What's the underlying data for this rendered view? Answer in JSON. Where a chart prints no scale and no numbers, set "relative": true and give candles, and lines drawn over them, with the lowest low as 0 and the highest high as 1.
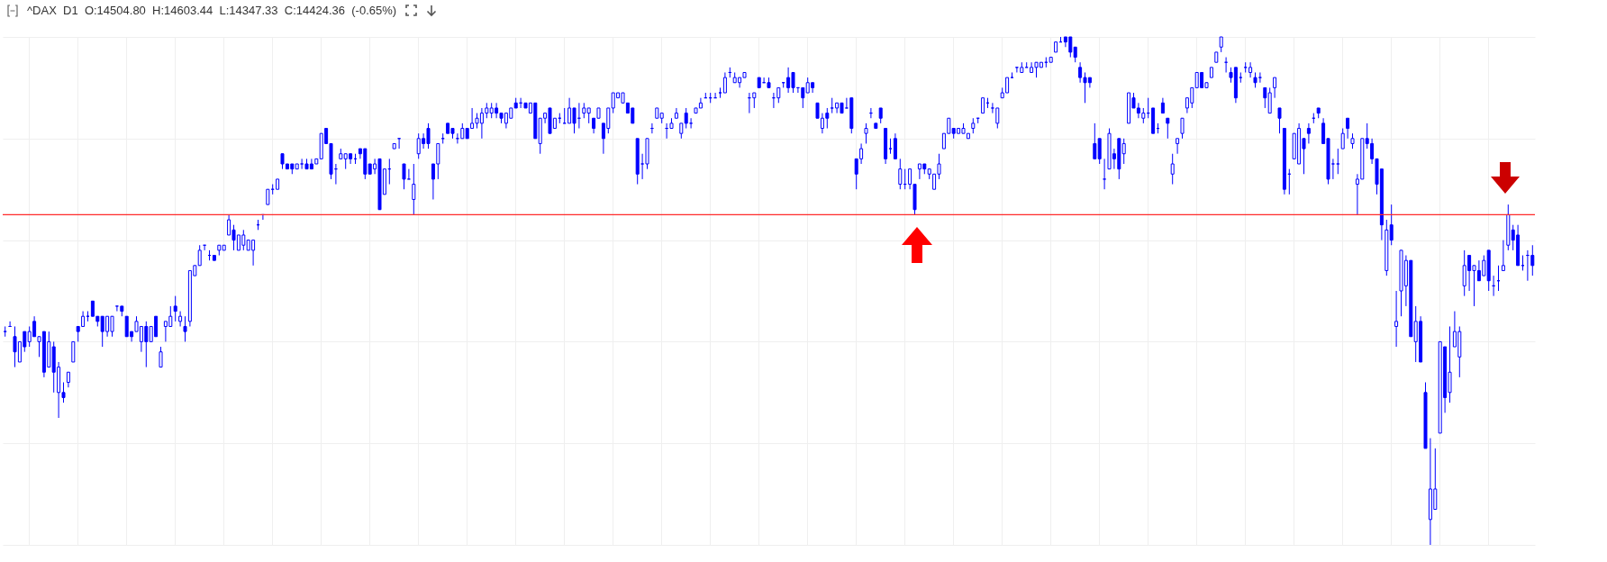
{
  "chart_data": {
    "type": "candlestick",
    "title": "^DAX  D1  O:14504.80  H:14603.44  L:14347.33  C:14424.36  (-0.65%)",
    "relative": true,
    "grid": true,
    "color": "#0000ff",
    "ref_lines": [
      {
        "axis": "y",
        "value": 0.65,
        "color": "#ff2a2a"
      }
    ],
    "categories": [
      null,
      null,
      null,
      null,
      null,
      null,
      null,
      null,
      null,
      null,
      null,
      null,
      null,
      null,
      null,
      null,
      null,
      null,
      null,
      null,
      null,
      null,
      null,
      null,
      null,
      null,
      null,
      null,
      null,
      null,
      null,
      null,
      null,
      null,
      null,
      null,
      null,
      null,
      null,
      null,
      null,
      null,
      null,
      null,
      null,
      null,
      null,
      null,
      null,
      null,
      null,
      null,
      null,
      null,
      null,
      null,
      null,
      null,
      null,
      null,
      null,
      null,
      null,
      null,
      null,
      null,
      null,
      null,
      null,
      null,
      null,
      null,
      null,
      null,
      null,
      null,
      null,
      null,
      null,
      null,
      null,
      null,
      null,
      null,
      null,
      null,
      null,
      null,
      null,
      null,
      null,
      null,
      null,
      null,
      null,
      null,
      null,
      null,
      null,
      null,
      null,
      null,
      null,
      null,
      null,
      null,
      null,
      null,
      null,
      null,
      null,
      null,
      null,
      null,
      null,
      null,
      null,
      null,
      null,
      null,
      null,
      null,
      null,
      null,
      null,
      null,
      null,
      null,
      null,
      null,
      null,
      null,
      null,
      null,
      null,
      null,
      null,
      null,
      null,
      null,
      null,
      null,
      null,
      null,
      null,
      null,
      null,
      null,
      null,
      null,
      null,
      null,
      null,
      null,
      null,
      null,
      null,
      null,
      null,
      null,
      null,
      null,
      null,
      null,
      null,
      null,
      null,
      null,
      null,
      null,
      null,
      null,
      null,
      null,
      null,
      null,
      null,
      null,
      null,
      null,
      null,
      null,
      null,
      null,
      null,
      null,
      null,
      null,
      null,
      null,
      null,
      null,
      null,
      null,
      null,
      null,
      null,
      null,
      null,
      null,
      null,
      null,
      null,
      null,
      null,
      null,
      null,
      null,
      null,
      null,
      null,
      null,
      null,
      null,
      null,
      null,
      null,
      null,
      null,
      null,
      null,
      null,
      null,
      null,
      null,
      null,
      null,
      null,
      null,
      null,
      null,
      null,
      null,
      null,
      null,
      null,
      null,
      null,
      null,
      null,
      null,
      null,
      null,
      null,
      null,
      null,
      null,
      null,
      null,
      null,
      null,
      null,
      null,
      null,
      null,
      null,
      null,
      null,
      null,
      null,
      null,
      null,
      null,
      null,
      null,
      null,
      null,
      null,
      null,
      null,
      null,
      null,
      null,
      null,
      null,
      null,
      null,
      null,
      null,
      null,
      null,
      null,
      null,
      null,
      null,
      null,
      null,
      null,
      null,
      null,
      null,
      null,
      null,
      null,
      null,
      null,
      null,
      null,
      null,
      null,
      null,
      null,
      null,
      null,
      null,
      null,
      null,
      null,
      null,
      null,
      null,
      null,
      null,
      null,
      null
    ],
    "ohlc": [
      [
        0.42,
        0.43,
        0.41,
        0.42
      ],
      [
        0.43,
        0.44,
        0.43,
        0.43
      ],
      [
        0.41,
        0.43,
        0.35,
        0.38
      ],
      [
        0.36,
        0.4,
        0.36,
        0.4
      ],
      [
        0.42,
        0.42,
        0.38,
        0.39
      ],
      [
        0.4,
        0.43,
        0.39,
        0.42
      ],
      [
        0.44,
        0.45,
        0.41,
        0.41
      ],
      [
        0.4,
        0.41,
        0.37,
        0.41
      ],
      [
        0.42,
        0.42,
        0.33,
        0.34
      ],
      [
        0.35,
        0.42,
        0.35,
        0.4
      ],
      [
        0.39,
        0.4,
        0.3,
        0.34
      ],
      [
        0.3,
        0.36,
        0.25,
        0.35
      ],
      [
        0.3,
        0.32,
        0.28,
        0.29
      ],
      [
        0.32,
        0.34,
        0.31,
        0.34
      ],
      [
        0.36,
        0.4,
        0.36,
        0.4
      ],
      [
        0.43,
        0.43,
        0.4,
        0.42
      ],
      [
        0.43,
        0.46,
        0.43,
        0.45
      ],
      [
        0.45,
        0.46,
        0.44,
        0.45
      ],
      [
        0.48,
        0.48,
        0.45,
        0.45
      ],
      [
        0.45,
        0.45,
        0.43,
        0.44
      ],
      [
        0.45,
        0.45,
        0.39,
        0.42
      ],
      [
        0.42,
        0.45,
        0.41,
        0.45
      ],
      [
        0.42,
        0.45,
        0.41,
        0.45
      ],
      [
        0.47,
        0.47,
        0.46,
        0.47
      ],
      [
        0.47,
        0.47,
        0.45,
        0.46
      ],
      [
        0.45,
        0.45,
        0.41,
        0.41
      ],
      [
        0.42,
        0.42,
        0.4,
        0.41
      ],
      [
        0.42,
        0.45,
        0.42,
        0.44
      ],
      [
        0.4,
        0.43,
        0.38,
        0.43
      ],
      [
        0.43,
        0.44,
        0.35,
        0.4
      ],
      [
        0.4,
        0.43,
        0.4,
        0.43
      ],
      [
        0.45,
        0.45,
        0.41,
        0.41
      ],
      [
        0.35,
        0.39,
        0.35,
        0.38
      ],
      [
        0.43,
        0.44,
        0.4,
        0.44
      ],
      [
        0.43,
        0.47,
        0.43,
        0.45
      ],
      [
        0.47,
        0.49,
        0.44,
        0.46
      ],
      [
        0.44,
        0.46,
        0.43,
        0.45
      ],
      [
        0.43,
        0.45,
        0.4,
        0.42
      ],
      [
        0.44,
        0.54,
        0.43,
        0.54
      ],
      [
        0.53,
        0.55,
        0.53,
        0.55
      ],
      [
        0.55,
        0.59,
        0.55,
        0.58
      ],
      [
        0.59,
        0.59,
        0.58,
        0.59
      ],
      [
        0.57,
        0.58,
        0.56,
        0.57
      ],
      [
        0.57,
        0.57,
        0.56,
        0.56
      ],
      [
        0.58,
        0.59,
        0.57,
        0.59
      ],
      [
        0.58,
        0.59,
        0.58,
        0.59
      ],
      [
        0.61,
        0.65,
        0.61,
        0.64
      ],
      [
        0.62,
        0.63,
        0.58,
        0.6
      ],
      [
        0.58,
        0.61,
        0.58,
        0.61
      ],
      [
        0.59,
        0.62,
        0.58,
        0.61
      ],
      [
        0.58,
        0.6,
        0.58,
        0.6
      ],
      [
        0.58,
        0.6,
        0.55,
        0.6
      ],
      [
        0.63,
        0.64,
        0.62,
        0.63
      ],
      [
        0.65,
        0.65,
        0.64,
        0.65
      ],
      [
        0.67,
        0.7,
        0.67,
        0.7
      ],
      [
        0.7,
        0.71,
        0.69,
        0.7
      ],
      [
        0.7,
        0.72,
        0.7,
        0.72
      ],
      [
        0.77,
        0.77,
        0.74,
        0.75
      ],
      [
        0.75,
        0.75,
        0.74,
        0.74
      ],
      [
        0.75,
        0.75,
        0.73,
        0.74
      ],
      [
        0.74,
        0.75,
        0.74,
        0.75
      ],
      [
        0.75,
        0.76,
        0.74,
        0.75
      ],
      [
        0.75,
        0.76,
        0.74,
        0.74
      ],
      [
        0.75,
        0.76,
        0.74,
        0.74
      ],
      [
        0.75,
        0.76,
        0.75,
        0.76
      ],
      [
        0.76,
        0.81,
        0.76,
        0.81
      ],
      [
        0.82,
        0.82,
        0.79,
        0.79
      ],
      [
        0.79,
        0.79,
        0.72,
        0.73
      ],
      [
        0.74,
        0.75,
        0.71,
        0.74
      ],
      [
        0.76,
        0.78,
        0.76,
        0.77
      ],
      [
        0.76,
        0.77,
        0.74,
        0.77
      ],
      [
        0.77,
        0.77,
        0.75,
        0.76
      ],
      [
        0.76,
        0.77,
        0.75,
        0.76
      ],
      [
        0.78,
        0.78,
        0.76,
        0.77
      ],
      [
        0.78,
        0.78,
        0.72,
        0.73
      ],
      [
        0.75,
        0.75,
        0.73,
        0.73
      ],
      [
        0.74,
        0.76,
        0.73,
        0.75
      ],
      [
        0.76,
        0.76,
        0.66,
        0.66
      ],
      [
        0.69,
        0.74,
        0.69,
        0.74
      ],
      [
        0.74,
        0.76,
        0.71,
        0.74
      ],
      [
        0.78,
        0.79,
        0.78,
        0.79
      ],
      [
        0.8,
        0.8,
        0.78,
        0.8
      ],
      [
        0.75,
        0.75,
        0.7,
        0.72
      ],
      [
        0.72,
        0.74,
        0.72,
        0.72
      ],
      [
        0.68,
        0.75,
        0.65,
        0.71
      ],
      [
        0.77,
        0.81,
        0.76,
        0.8
      ],
      [
        0.8,
        0.81,
        0.78,
        0.79
      ],
      [
        0.82,
        0.83,
        0.78,
        0.79
      ],
      [
        0.75,
        0.75,
        0.68,
        0.72
      ],
      [
        0.75,
        0.79,
        0.72,
        0.79
      ],
      [
        0.8,
        0.81,
        0.79,
        0.8
      ],
      [
        0.83,
        0.83,
        0.81,
        0.81
      ],
      [
        0.82,
        0.82,
        0.8,
        0.81
      ],
      [
        0.8,
        0.81,
        0.79,
        0.8
      ],
      [
        0.8,
        0.83,
        0.8,
        0.82
      ],
      [
        0.82,
        0.82,
        0.8,
        0.8
      ],
      [
        0.82,
        0.86,
        0.82,
        0.83
      ],
      [
        0.83,
        0.85,
        0.82,
        0.84
      ],
      [
        0.83,
        0.86,
        0.8,
        0.85
      ],
      [
        0.85,
        0.87,
        0.84,
        0.86
      ],
      [
        0.85,
        0.87,
        0.84,
        0.86
      ],
      [
        0.86,
        0.87,
        0.84,
        0.85
      ],
      [
        0.85,
        0.85,
        0.83,
        0.84
      ],
      [
        0.83,
        0.85,
        0.82,
        0.85
      ],
      [
        0.84,
        0.86,
        0.84,
        0.86
      ],
      [
        0.87,
        0.88,
        0.86,
        0.86
      ],
      [
        0.87,
        0.88,
        0.86,
        0.87
      ],
      [
        0.87,
        0.87,
        0.86,
        0.86
      ],
      [
        0.85,
        0.87,
        0.85,
        0.87
      ],
      [
        0.87,
        0.87,
        0.8,
        0.8
      ],
      [
        0.79,
        0.84,
        0.77,
        0.84
      ],
      [
        0.84,
        0.85,
        0.83,
        0.85
      ],
      [
        0.86,
        0.86,
        0.81,
        0.81
      ],
      [
        0.82,
        0.84,
        0.82,
        0.84
      ],
      [
        0.84,
        0.85,
        0.83,
        0.84
      ],
      [
        0.83,
        0.86,
        0.83,
        0.83
      ],
      [
        0.83,
        0.88,
        0.83,
        0.86
      ],
      [
        0.86,
        0.86,
        0.81,
        0.83
      ],
      [
        0.84,
        0.87,
        0.82,
        0.84
      ],
      [
        0.85,
        0.87,
        0.84,
        0.86
      ],
      [
        0.85,
        0.86,
        0.83,
        0.86
      ],
      [
        0.84,
        0.84,
        0.81,
        0.82
      ],
      [
        0.84,
        0.86,
        0.84,
        0.86
      ],
      [
        0.83,
        0.83,
        0.77,
        0.8
      ],
      [
        0.82,
        0.86,
        0.81,
        0.86
      ],
      [
        0.86,
        0.89,
        0.85,
        0.89
      ],
      [
        0.88,
        0.89,
        0.88,
        0.89
      ],
      [
        0.87,
        0.89,
        0.87,
        0.89
      ],
      [
        0.87,
        0.87,
        0.85,
        0.85
      ],
      [
        0.86,
        0.86,
        0.83,
        0.83
      ],
      [
        0.8,
        0.8,
        0.71,
        0.73
      ],
      [
        0.75,
        0.77,
        0.72,
        0.75
      ],
      [
        0.75,
        0.8,
        0.74,
        0.8
      ],
      [
        0.82,
        0.83,
        0.81,
        0.82
      ],
      [
        0.84,
        0.86,
        0.84,
        0.86
      ],
      [
        0.84,
        0.85,
        0.83,
        0.85
      ],
      [
        0.82,
        0.83,
        0.8,
        0.82
      ],
      [
        0.82,
        0.84,
        0.82,
        0.83
      ],
      [
        0.84,
        0.86,
        0.84,
        0.85
      ],
      [
        0.81,
        0.83,
        0.8,
        0.83
      ],
      [
        0.85,
        0.86,
        0.82,
        0.83
      ],
      [
        0.83,
        0.84,
        0.82,
        0.83
      ],
      [
        0.85,
        0.86,
        0.85,
        0.86
      ],
      [
        0.86,
        0.88,
        0.86,
        0.87
      ],
      [
        0.88,
        0.89,
        0.88,
        0.88
      ],
      [
        0.88,
        0.89,
        0.87,
        0.88
      ],
      [
        0.88,
        0.89,
        0.88,
        0.88
      ],
      [
        0.89,
        0.9,
        0.88,
        0.89
      ],
      [
        0.89,
        0.93,
        0.89,
        0.92
      ],
      [
        0.93,
        0.94,
        0.92,
        0.93
      ],
      [
        0.91,
        0.93,
        0.91,
        0.92
      ],
      [
        0.91,
        0.92,
        0.9,
        0.92
      ],
      [
        0.92,
        0.93,
        0.92,
        0.93
      ],
      [
        0.88,
        0.89,
        0.85,
        0.88
      ],
      [
        0.88,
        0.89,
        0.86,
        0.89
      ],
      [
        0.92,
        0.92,
        0.9,
        0.9
      ],
      [
        0.91,
        0.92,
        0.91,
        0.91
      ],
      [
        0.91,
        0.92,
        0.9,
        0.9
      ],
      [
        0.88,
        0.89,
        0.86,
        0.88
      ],
      [
        0.88,
        0.9,
        0.87,
        0.9
      ],
      [
        0.91,
        0.91,
        0.9,
        0.91
      ],
      [
        0.92,
        0.94,
        0.89,
        0.9
      ],
      [
        0.93,
        0.93,
        0.89,
        0.9
      ],
      [
        0.9,
        0.9,
        0.89,
        0.9
      ],
      [
        0.9,
        0.9,
        0.86,
        0.88
      ],
      [
        0.89,
        0.92,
        0.89,
        0.91
      ],
      [
        0.91,
        0.91,
        0.89,
        0.9
      ],
      [
        0.87,
        0.87,
        0.84,
        0.84
      ],
      [
        0.82,
        0.85,
        0.81,
        0.84
      ],
      [
        0.85,
        0.86,
        0.82,
        0.84
      ],
      [
        0.86,
        0.88,
        0.85,
        0.86
      ],
      [
        0.86,
        0.87,
        0.85,
        0.87
      ],
      [
        0.87,
        0.87,
        0.85,
        0.85
      ],
      [
        0.86,
        0.88,
        0.86,
        0.86
      ],
      [
        0.88,
        0.88,
        0.81,
        0.82
      ],
      [
        0.76,
        0.76,
        0.7,
        0.73
      ],
      [
        0.76,
        0.79,
        0.75,
        0.78
      ],
      [
        0.81,
        0.83,
        0.79,
        0.82
      ],
      [
        0.85,
        0.86,
        0.84,
        0.85
      ],
      [
        0.83,
        0.83,
        0.82,
        0.82
      ],
      [
        0.86,
        0.86,
        0.83,
        0.84
      ],
      [
        0.82,
        0.82,
        0.75,
        0.76
      ],
      [
        0.78,
        0.8,
        0.77,
        0.78
      ],
      [
        0.8,
        0.81,
        0.76,
        0.76
      ],
      [
        0.71,
        0.76,
        0.7,
        0.74
      ],
      [
        0.71,
        0.74,
        0.7,
        0.71
      ],
      [
        0.71,
        0.74,
        0.7,
        0.74
      ],
      [
        0.71,
        0.71,
        0.65,
        0.66
      ],
      [
        0.74,
        0.75,
        0.72,
        0.75
      ],
      [
        0.75,
        0.75,
        0.73,
        0.74
      ],
      [
        0.73,
        0.74,
        0.72,
        0.74
      ],
      [
        0.7,
        0.73,
        0.7,
        0.73
      ],
      [
        0.73,
        0.77,
        0.72,
        0.75
      ],
      [
        0.78,
        0.81,
        0.78,
        0.81
      ],
      [
        0.81,
        0.84,
        0.81,
        0.84
      ],
      [
        0.82,
        0.82,
        0.8,
        0.81
      ],
      [
        0.81,
        0.82,
        0.81,
        0.82
      ],
      [
        0.81,
        0.83,
        0.81,
        0.82
      ],
      [
        0.8,
        0.81,
        0.8,
        0.81
      ],
      [
        0.82,
        0.84,
        0.81,
        0.83
      ],
      [
        0.84,
        0.84,
        0.83,
        0.84
      ],
      [
        0.85,
        0.88,
        0.85,
        0.88
      ],
      [
        0.87,
        0.88,
        0.86,
        0.87
      ],
      [
        0.86,
        0.87,
        0.85,
        0.86
      ],
      [
        0.83,
        0.86,
        0.82,
        0.86
      ],
      [
        0.88,
        0.9,
        0.88,
        0.89
      ],
      [
        0.89,
        0.92,
        0.89,
        0.92
      ],
      [
        0.92,
        0.93,
        0.92,
        0.92
      ],
      [
        0.94,
        0.94,
        0.93,
        0.94
      ],
      [
        0.93,
        0.95,
        0.93,
        0.94
      ],
      [
        0.94,
        0.95,
        0.94,
        0.94
      ],
      [
        0.93,
        0.95,
        0.93,
        0.94
      ],
      [
        0.94,
        0.95,
        0.92,
        0.95
      ],
      [
        0.94,
        0.95,
        0.94,
        0.95
      ],
      [
        0.95,
        0.96,
        0.94,
        0.95
      ],
      [
        0.95,
        0.96,
        0.95,
        0.96
      ],
      [
        0.97,
        0.99,
        0.97,
        0.99
      ],
      [
        0.99,
        1.0,
        0.99,
        0.99
      ],
      [
        1.0,
        1.0,
        0.98,
        0.99
      ],
      [
        1.0,
        1.0,
        0.96,
        0.97
      ],
      [
        0.98,
        0.98,
        0.95,
        0.96
      ],
      [
        0.94,
        0.95,
        0.91,
        0.92
      ],
      [
        0.92,
        0.93,
        0.87,
        0.91
      ],
      [
        0.92,
        0.92,
        0.9,
        0.91
      ],
      [
        0.79,
        0.83,
        0.76,
        0.76
      ],
      [
        0.8,
        0.8,
        0.75,
        0.76
      ],
      [
        0.72,
        0.76,
        0.7,
        0.72
      ],
      [
        0.74,
        0.82,
        0.74,
        0.81
      ],
      [
        0.77,
        0.78,
        0.74,
        0.76
      ],
      [
        0.8,
        0.8,
        0.72,
        0.74
      ],
      [
        0.77,
        0.8,
        0.75,
        0.79
      ],
      [
        0.83,
        0.89,
        0.83,
        0.89
      ],
      [
        0.88,
        0.89,
        0.86,
        0.86
      ],
      [
        0.86,
        0.87,
        0.84,
        0.85
      ],
      [
        0.84,
        0.86,
        0.83,
        0.85
      ],
      [
        0.85,
        0.88,
        0.84,
        0.85
      ],
      [
        0.86,
        0.86,
        0.81,
        0.81
      ],
      [
        0.82,
        0.83,
        0.81,
        0.82
      ],
      [
        0.87,
        0.88,
        0.85,
        0.85
      ],
      [
        0.84,
        0.84,
        0.8,
        0.83
      ],
      [
        0.73,
        0.77,
        0.71,
        0.75
      ],
      [
        0.79,
        0.8,
        0.77,
        0.8
      ],
      [
        0.81,
        0.84,
        0.8,
        0.84
      ],
      [
        0.86,
        0.88,
        0.85,
        0.88
      ],
      [
        0.87,
        0.9,
        0.86,
        0.9
      ],
      [
        0.9,
        0.93,
        0.9,
        0.93
      ],
      [
        0.93,
        0.93,
        0.9,
        0.9
      ],
      [
        0.9,
        0.91,
        0.9,
        0.91
      ],
      [
        0.92,
        0.94,
        0.92,
        0.94
      ],
      [
        0.95,
        0.97,
        0.95,
        0.97
      ],
      [
        0.98,
        1.0,
        0.97,
        1.0
      ],
      [
        0.95,
        0.96,
        0.93,
        0.95
      ],
      [
        0.93,
        0.94,
        0.91,
        0.92
      ],
      [
        0.94,
        0.94,
        0.87,
        0.88
      ],
      [
        0.92,
        0.93,
        0.91,
        0.92
      ],
      [
        0.94,
        0.95,
        0.93,
        0.94
      ],
      [
        0.93,
        0.95,
        0.92,
        0.94
      ],
      [
        0.92,
        0.93,
        0.9,
        0.91
      ],
      [
        0.92,
        0.93,
        0.91,
        0.92
      ],
      [
        0.9,
        0.9,
        0.86,
        0.88
      ],
      [
        0.85,
        0.9,
        0.85,
        0.89
      ],
      [
        0.9,
        0.92,
        0.88,
        0.92
      ],
      [
        0.86,
        0.86,
        0.81,
        0.84
      ],
      [
        0.82,
        0.82,
        0.69,
        0.7
      ],
      [
        0.73,
        0.74,
        0.69,
        0.73
      ],
      [
        0.76,
        0.81,
        0.76,
        0.81
      ],
      [
        0.75,
        0.83,
        0.75,
        0.82
      ],
      [
        0.8,
        0.8,
        0.73,
        0.78
      ],
      [
        0.82,
        0.83,
        0.79,
        0.81
      ],
      [
        0.84,
        0.85,
        0.83,
        0.84
      ],
      [
        0.86,
        0.86,
        0.84,
        0.85
      ],
      [
        0.83,
        0.84,
        0.79,
        0.79
      ],
      [
        0.8,
        0.8,
        0.71,
        0.72
      ],
      [
        0.75,
        0.76,
        0.72,
        0.75
      ],
      [
        0.75,
        0.78,
        0.73,
        0.75
      ],
      [
        0.78,
        0.82,
        0.78,
        0.81
      ],
      [
        0.84,
        0.84,
        0.8,
        0.82
      ],
      [
        0.79,
        0.81,
        0.78,
        0.8
      ],
      [
        0.71,
        0.73,
        0.65,
        0.72
      ],
      [
        0.72,
        0.8,
        0.72,
        0.8
      ],
      [
        0.8,
        0.83,
        0.78,
        0.79
      ],
      [
        0.79,
        0.8,
        0.75,
        0.76
      ],
      [
        0.76,
        0.76,
        0.69,
        0.71
      ],
      [
        0.74,
        0.74,
        0.6,
        0.63
      ],
      [
        0.54,
        0.64,
        0.53,
        0.62
      ],
      [
        0.63,
        0.67,
        0.59,
        0.6
      ],
      [
        0.43,
        0.5,
        0.39,
        0.44
      ],
      [
        0.5,
        0.58,
        0.45,
        0.58
      ],
      [
        0.51,
        0.57,
        0.47,
        0.56
      ],
      [
        0.56,
        0.56,
        0.41,
        0.41
      ],
      [
        0.4,
        0.47,
        0.36,
        0.44
      ],
      [
        0.44,
        0.45,
        0.36,
        0.36
      ],
      [
        0.3,
        0.32,
        0.19,
        0.19
      ],
      [
        0.05,
        0.21,
        0,
        0.11
      ],
      [
        0.07,
        0.19,
        0.07,
        0.11
      ],
      [
        0.22,
        0.4,
        0.22,
        0.4
      ],
      [
        0.39,
        0.39,
        0.26,
        0.29
      ],
      [
        0.3,
        0.43,
        0.28,
        0.34
      ],
      [
        0.39,
        0.46,
        0.39,
        0.42
      ],
      [
        0.37,
        0.43,
        0.33,
        0.42
      ],
      [
        0.51,
        0.58,
        0.49,
        0.55
      ],
      [
        0.57,
        0.57,
        0.5,
        0.54
      ],
      [
        0.54,
        0.55,
        0.47,
        0.55
      ],
      [
        0.54,
        0.56,
        0.52,
        0.52
      ],
      [
        0.53,
        0.57,
        0.53,
        0.56
      ],
      [
        0.58,
        0.58,
        0.5,
        0.52
      ],
      [
        0.51,
        0.53,
        0.49,
        0.51
      ],
      [
        0.52,
        0.55,
        0.5,
        0.52
      ],
      [
        0.54,
        0.6,
        0.54,
        0.55
      ],
      [
        0.59,
        0.67,
        0.58,
        0.65
      ],
      [
        0.62,
        0.63,
        0.58,
        0.6
      ],
      [
        0.61,
        0.63,
        0.55,
        0.55
      ],
      [
        0.55,
        0.57,
        0.54,
        0.55
      ],
      [
        0.57,
        0.58,
        0.52,
        0.57
      ],
      [
        0.57,
        0.59,
        0.53,
        0.55
      ]
    ]
  }
}
